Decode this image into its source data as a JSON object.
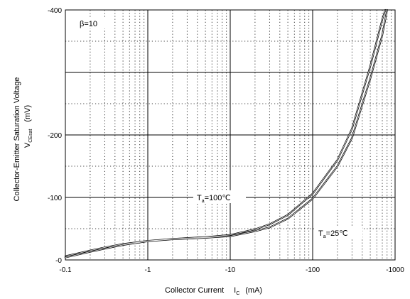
{
  "chart_data": {
    "type": "line",
    "xscale": "log",
    "xlim": [
      -0.1,
      -1000
    ],
    "ylim": [
      0,
      -400
    ],
    "xlabel": "Collector Current",
    "xlabel_symbol": "I",
    "xlabel_symbol_sub": "C",
    "xlabel_unit": "(mA)",
    "ylabel_line1": "Collector-Emitter Saturation Voltage",
    "ylabel_symbol": "V",
    "ylabel_symbol_sub": "CEsat",
    "ylabel_unit": "(mV)",
    "x_ticks": [
      "-0.1",
      "-1",
      "-10",
      "-100",
      "-1000"
    ],
    "y_ticks": [
      "-0",
      "-100",
      "-200",
      "-400"
    ],
    "grid": true,
    "annotations": {
      "beta": "β=10",
      "ta100_prefix": "T",
      "ta100_sub": "a",
      "ta100_value": "=100℃",
      "ta25_prefix": "T",
      "ta25_sub": "a",
      "ta25_value": "=25℃"
    },
    "series": [
      {
        "x": [
          -0.1,
          -0.2,
          -0.3,
          -0.5,
          -1,
          -2,
          -3,
          -5,
          -10,
          -20,
          -30,
          -50,
          -100,
          -200,
          -300,
          -500,
          -700,
          -800
        ],
        "values": [
          -4,
          -13,
          -18,
          -24,
          -30,
          -33,
          -34,
          -35.5,
          -38,
          -46,
          -52,
          -66,
          -98,
          -150,
          -195,
          -290,
          -360,
          -400
        ]
      },
      {
        "x": [
          -0.1,
          -0.2,
          -0.3,
          -0.5,
          -1,
          -2,
          -3,
          -5,
          -10,
          -20,
          -30,
          -50,
          -100,
          -200,
          -300,
          -500,
          -700,
          -760
        ],
        "values": [
          -6,
          -15,
          -20,
          -25.5,
          -30.5,
          -33.5,
          -35,
          -36.5,
          -40,
          -49,
          -57,
          -72,
          -106,
          -160,
          -210,
          -310,
          -385,
          -400
        ]
      }
    ]
  }
}
